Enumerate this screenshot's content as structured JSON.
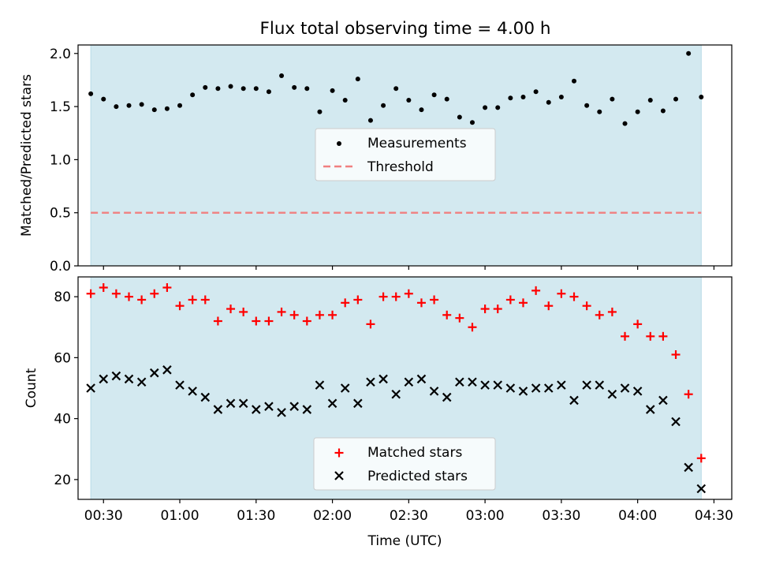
{
  "title": "Flux total observing time = 4.00 h",
  "colors": {
    "band": "#d3e9f0",
    "band_edge": "#b8dbe6",
    "measurement": "#000000",
    "threshold": "#f08080",
    "matched": "#ff0000",
    "predicted": "#000000"
  },
  "chart_data": [
    {
      "type": "scatter",
      "title": "Flux total observing time = 4.00 h",
      "xlabel": "",
      "ylabel": "Matched/Predicted stars",
      "ylim": [
        0.0,
        2.08
      ],
      "yticks": [
        "0.0",
        "0.5",
        "1.0",
        "1.5",
        "2.0"
      ],
      "shaded_range_x": [
        "00:25",
        "04:25"
      ],
      "legend": {
        "placement": "center",
        "entries": [
          "Measurements",
          "Threshold"
        ]
      },
      "threshold": {
        "name": "Threshold",
        "y": 0.5
      },
      "series": [
        {
          "name": "Measurements",
          "x": [
            "00:25",
            "00:30",
            "00:35",
            "00:40",
            "00:45",
            "00:50",
            "00:55",
            "01:00",
            "01:05",
            "01:10",
            "01:15",
            "01:20",
            "01:25",
            "01:30",
            "01:35",
            "01:40",
            "01:45",
            "01:50",
            "01:55",
            "02:00",
            "02:05",
            "02:10",
            "02:15",
            "02:20",
            "02:25",
            "02:30",
            "02:35",
            "02:40",
            "02:45",
            "02:50",
            "02:55",
            "03:00",
            "03:05",
            "03:10",
            "03:15",
            "03:20",
            "03:25",
            "03:30",
            "03:35",
            "03:40",
            "03:45",
            "03:50",
            "03:55",
            "04:00",
            "04:05",
            "04:10",
            "04:15",
            "04:20",
            "04:25"
          ],
          "y": [
            1.62,
            1.57,
            1.5,
            1.51,
            1.52,
            1.47,
            1.48,
            1.51,
            1.61,
            1.68,
            1.67,
            1.69,
            1.67,
            1.67,
            1.64,
            1.79,
            1.68,
            1.67,
            1.45,
            1.65,
            1.56,
            1.76,
            1.37,
            1.51,
            1.67,
            1.56,
            1.47,
            1.61,
            1.57,
            1.4,
            1.35,
            1.49,
            1.49,
            1.58,
            1.59,
            1.64,
            1.54,
            1.59,
            1.74,
            1.51,
            1.45,
            1.57,
            1.34,
            1.45,
            1.56,
            1.46,
            1.57,
            2.0,
            1.59
          ]
        }
      ]
    },
    {
      "type": "scatter",
      "xlabel": "Time (UTC)",
      "ylabel": "Count",
      "ylim": [
        13.5,
        86.5
      ],
      "yticks": [
        "20",
        "40",
        "60",
        "80"
      ],
      "xticks": [
        "00:30",
        "01:00",
        "01:30",
        "02:00",
        "02:30",
        "03:00",
        "03:30",
        "04:00",
        "04:30"
      ],
      "shaded_range_x": [
        "00:25",
        "04:25"
      ],
      "legend": {
        "placement": "lower center",
        "entries": [
          "Matched stars",
          "Predicted stars"
        ]
      },
      "series": [
        {
          "name": "Matched stars",
          "x": [
            "00:25",
            "00:30",
            "00:35",
            "00:40",
            "00:45",
            "00:50",
            "00:55",
            "01:00",
            "01:05",
            "01:10",
            "01:15",
            "01:20",
            "01:25",
            "01:30",
            "01:35",
            "01:40",
            "01:45",
            "01:50",
            "01:55",
            "02:00",
            "02:05",
            "02:10",
            "02:15",
            "02:20",
            "02:25",
            "02:30",
            "02:35",
            "02:40",
            "02:45",
            "02:50",
            "02:55",
            "03:00",
            "03:05",
            "03:10",
            "03:15",
            "03:20",
            "03:25",
            "03:30",
            "03:35",
            "03:40",
            "03:45",
            "03:50",
            "03:55",
            "04:00",
            "04:05",
            "04:10",
            "04:15",
            "04:20",
            "04:25"
          ],
          "y": [
            81,
            83,
            81,
            80,
            79,
            81,
            83,
            77,
            79,
            79,
            72,
            76,
            75,
            72,
            72,
            75,
            74,
            72,
            74,
            74,
            78,
            79,
            71,
            80,
            80,
            81,
            78,
            79,
            74,
            73,
            70,
            76,
            76,
            79,
            78,
            82,
            77,
            81,
            80,
            77,
            74,
            75,
            67,
            71,
            67,
            67,
            61,
            48,
            27
          ]
        },
        {
          "name": "Predicted stars",
          "x": [
            "00:25",
            "00:30",
            "00:35",
            "00:40",
            "00:45",
            "00:50",
            "00:55",
            "01:00",
            "01:05",
            "01:10",
            "01:15",
            "01:20",
            "01:25",
            "01:30",
            "01:35",
            "01:40",
            "01:45",
            "01:50",
            "01:55",
            "02:00",
            "02:05",
            "02:10",
            "02:15",
            "02:20",
            "02:25",
            "02:30",
            "02:35",
            "02:40",
            "02:45",
            "02:50",
            "02:55",
            "03:00",
            "03:05",
            "03:10",
            "03:15",
            "03:20",
            "03:25",
            "03:30",
            "03:35",
            "03:40",
            "03:45",
            "03:50",
            "03:55",
            "04:00",
            "04:05",
            "04:10",
            "04:15",
            "04:20",
            "04:25"
          ],
          "y": [
            50,
            53,
            54,
            53,
            52,
            55,
            56,
            51,
            49,
            47,
            43,
            45,
            45,
            43,
            44,
            42,
            44,
            43,
            51,
            45,
            50,
            45,
            52,
            53,
            48,
            52,
            53,
            49,
            47,
            52,
            52,
            51,
            51,
            50,
            49,
            50,
            50,
            51,
            46,
            51,
            51,
            48,
            50,
            49,
            43,
            46,
            39,
            24,
            17
          ]
        }
      ]
    }
  ]
}
